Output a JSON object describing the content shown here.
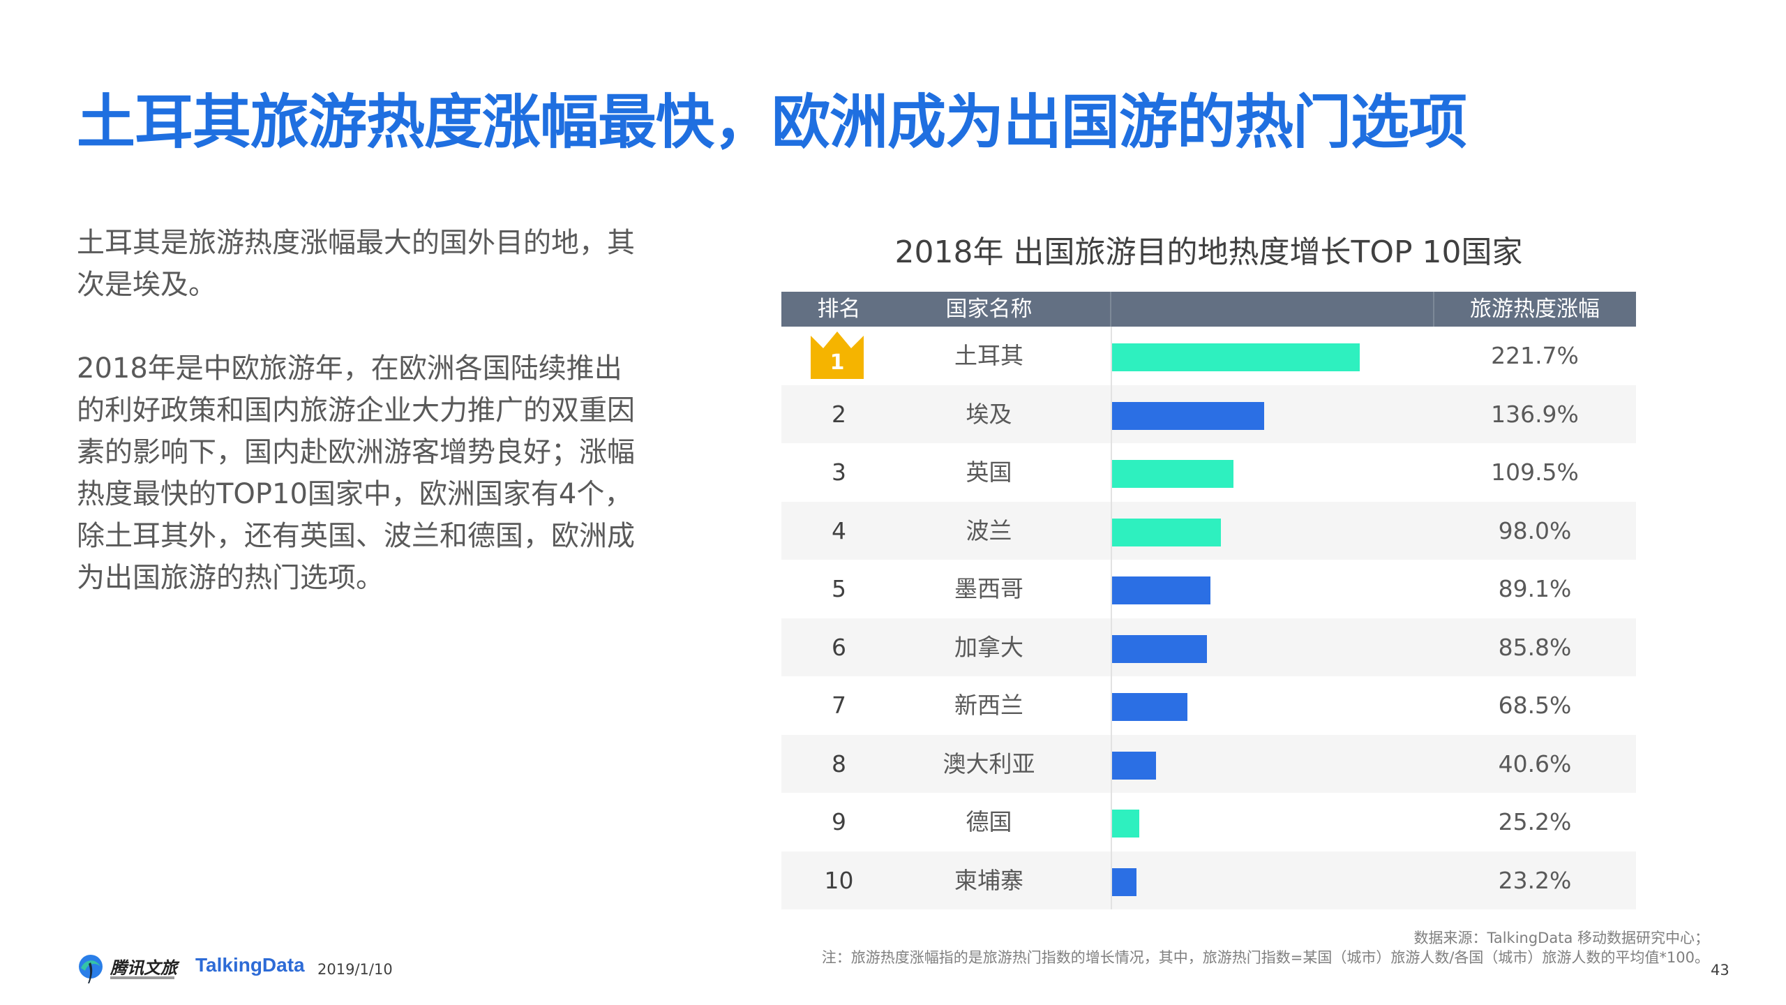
{
  "title": "土耳其旅游热度涨幅最快，欧洲成为出国游的热门选项",
  "intro": {
    "p1": "土耳其是旅游热度涨幅最大的国外目的地，其次是埃及。",
    "p2": "2018年是中欧旅游年，在欧洲各国陆续推出的利好政策和国内旅游企业大力推广的双重因素的影响下，国内赴欧洲游客增势良好；涨幅热度最快的TOP10国家中，欧洲国家有4个，除土耳其外，还有英国、波兰和德国，欧洲成为出国旅游的热门选项。"
  },
  "chart_data": {
    "type": "bar",
    "orientation": "horizontal",
    "title": "2018年 出国旅游目的地热度增长TOP 10国家",
    "columns": {
      "rank": "排名",
      "country": "国家名称",
      "growth": "旅游热度涨幅"
    },
    "unit": "%",
    "rows": [
      {
        "rank": "1",
        "country": "土耳其",
        "value": 221.7,
        "label": "221.7%",
        "color": "#2ef0bf",
        "crown": true
      },
      {
        "rank": "2",
        "country": "埃及",
        "value": 136.9,
        "label": "136.9%",
        "color": "#2b6fe4"
      },
      {
        "rank": "3",
        "country": "英国",
        "value": 109.5,
        "label": "109.5%",
        "color": "#2ef0bf"
      },
      {
        "rank": "4",
        "country": "波兰",
        "value": 98.0,
        "label": "98.0%",
        "color": "#2ef0bf"
      },
      {
        "rank": "5",
        "country": "墨西哥",
        "value": 89.1,
        "label": "89.1%",
        "color": "#2b6fe4"
      },
      {
        "rank": "6",
        "country": "加拿大",
        "value": 85.8,
        "label": "85.8%",
        "color": "#2b6fe4"
      },
      {
        "rank": "7",
        "country": "新西兰",
        "value": 68.5,
        "label": "68.5%",
        "color": "#2b6fe4"
      },
      {
        "rank": "8",
        "country": "澳大利亚",
        "value": 40.6,
        "label": "40.6%",
        "color": "#2b6fe4"
      },
      {
        "rank": "9",
        "country": "德国",
        "value": 25.2,
        "label": "25.2%",
        "color": "#2ef0bf"
      },
      {
        "rank": "10",
        "country": "柬埔寨",
        "value": 23.2,
        "label": "23.2%",
        "color": "#2b6fe4"
      }
    ],
    "xlim": [
      0,
      500
    ]
  },
  "source": "数据来源：TalkingData 移动数据研究中心；",
  "note": "注：旅游热度涨幅指的是旅游热门指数的增长情况，其中，旅游热门指数=某国（城市）旅游人数/各国（城市）旅游人数的平均值*100。",
  "footer": {
    "brand1": "腾讯文旅",
    "brand2": "TalkingData",
    "date": "2019/1/10",
    "page": "43"
  },
  "colors": {
    "title": "#1f6fe0",
    "header_bg": "#637083",
    "europe": "#2ef0bf",
    "other": "#2b6fe4",
    "crown": "#f5b400"
  },
  "icons": {
    "crown": "crown-icon",
    "logo": "tencent-logo-icon"
  }
}
